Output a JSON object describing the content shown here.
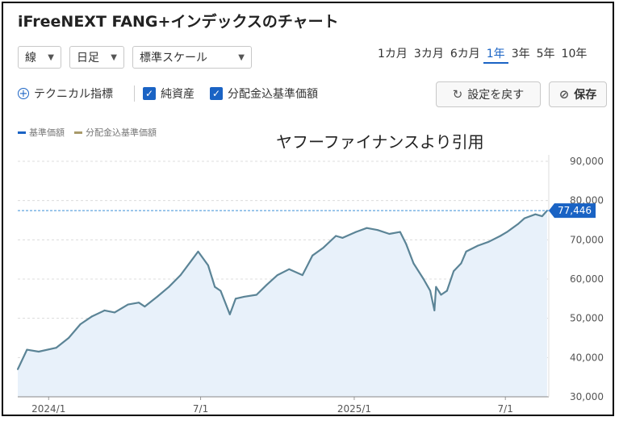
{
  "title": "iFreeNEXT FANG+インデックスのチャート",
  "controls": {
    "line_type": "線",
    "interval": "日足",
    "scale": "標準スケール",
    "periods": [
      "1カ月",
      "3カ月",
      "6カ月",
      "1年",
      "3年",
      "5年",
      "10年"
    ],
    "active_period": "1年",
    "technical": "テクニカル指標",
    "checkbox_nav": "純資産",
    "checkbox_dist": "分配金込基準価額",
    "reset_button": "設定を戻す",
    "save_button": "保存"
  },
  "watermark": "ヤフーファイナンスより引用",
  "colors": {
    "accent": "#1a63c4",
    "line": "#5b8496",
    "fill": "#e8f1fa",
    "dist_legend": "#a89a6a"
  },
  "chart_data": {
    "type": "area",
    "title": "",
    "xlabel": "",
    "ylabel": "",
    "ylim": [
      30000,
      90000
    ],
    "yticks": [
      90000,
      80000,
      70000,
      60000,
      50000,
      40000,
      30000
    ],
    "ytick_labels": [
      "90,000",
      "80,000",
      "70,000",
      "60,000",
      "50,000",
      "40,000",
      "30,000"
    ],
    "xtick_labels": [
      "2024/1",
      "7/1",
      "2025/1",
      "7/1"
    ],
    "xtick_dates": [
      "2024-01-01",
      "2024-07-01",
      "2025-01-01",
      "2025-07-01"
    ],
    "xlim": [
      "2023-11-25",
      "2025-08-22"
    ],
    "last_value": 77446,
    "last_value_label": "77,446",
    "grid": true,
    "legend_position": "top-left",
    "series": [
      {
        "name": "基準価額",
        "color": "#5b8496",
        "x": [
          "2023-11-25",
          "2023-12-06",
          "2023-12-20",
          "2024-01-10",
          "2024-01-25",
          "2024-02-08",
          "2024-02-22",
          "2024-03-08",
          "2024-03-20",
          "2024-04-05",
          "2024-04-18",
          "2024-04-25",
          "2024-05-10",
          "2024-05-24",
          "2024-06-07",
          "2024-06-21",
          "2024-06-28",
          "2024-07-10",
          "2024-07-18",
          "2024-07-25",
          "2024-08-05",
          "2024-08-12",
          "2024-08-22",
          "2024-09-06",
          "2024-09-18",
          "2024-10-01",
          "2024-10-15",
          "2024-10-31",
          "2024-11-12",
          "2024-11-25",
          "2024-12-10",
          "2024-12-18",
          "2025-01-03",
          "2025-01-16",
          "2025-01-29",
          "2025-02-12",
          "2025-02-25",
          "2025-03-04",
          "2025-03-13",
          "2025-03-25",
          "2025-04-02",
          "2025-04-07",
          "2025-04-09",
          "2025-04-15",
          "2025-04-22",
          "2025-04-30",
          "2025-05-09",
          "2025-05-15",
          "2025-05-29",
          "2025-06-11",
          "2025-06-25",
          "2025-07-03",
          "2025-07-16",
          "2025-07-24",
          "2025-08-06",
          "2025-08-14",
          "2025-08-20"
        ],
        "values": [
          37000,
          42000,
          41500,
          42500,
          45000,
          48500,
          50500,
          52000,
          51500,
          53500,
          54000,
          53000,
          55500,
          58000,
          61000,
          65000,
          67000,
          63500,
          58000,
          57000,
          51000,
          55000,
          55500,
          56000,
          58500,
          61000,
          62500,
          61000,
          66000,
          68000,
          71000,
          70500,
          72000,
          73000,
          72500,
          71500,
          72000,
          69000,
          64000,
          60000,
          57000,
          52000,
          58000,
          56000,
          57000,
          62000,
          64000,
          67000,
          68500,
          69500,
          71000,
          72000,
          74000,
          75500,
          76500,
          76000,
          77446
        ]
      },
      {
        "name": "分配金込基準価額",
        "color": "#a89a6a",
        "values": []
      }
    ]
  }
}
